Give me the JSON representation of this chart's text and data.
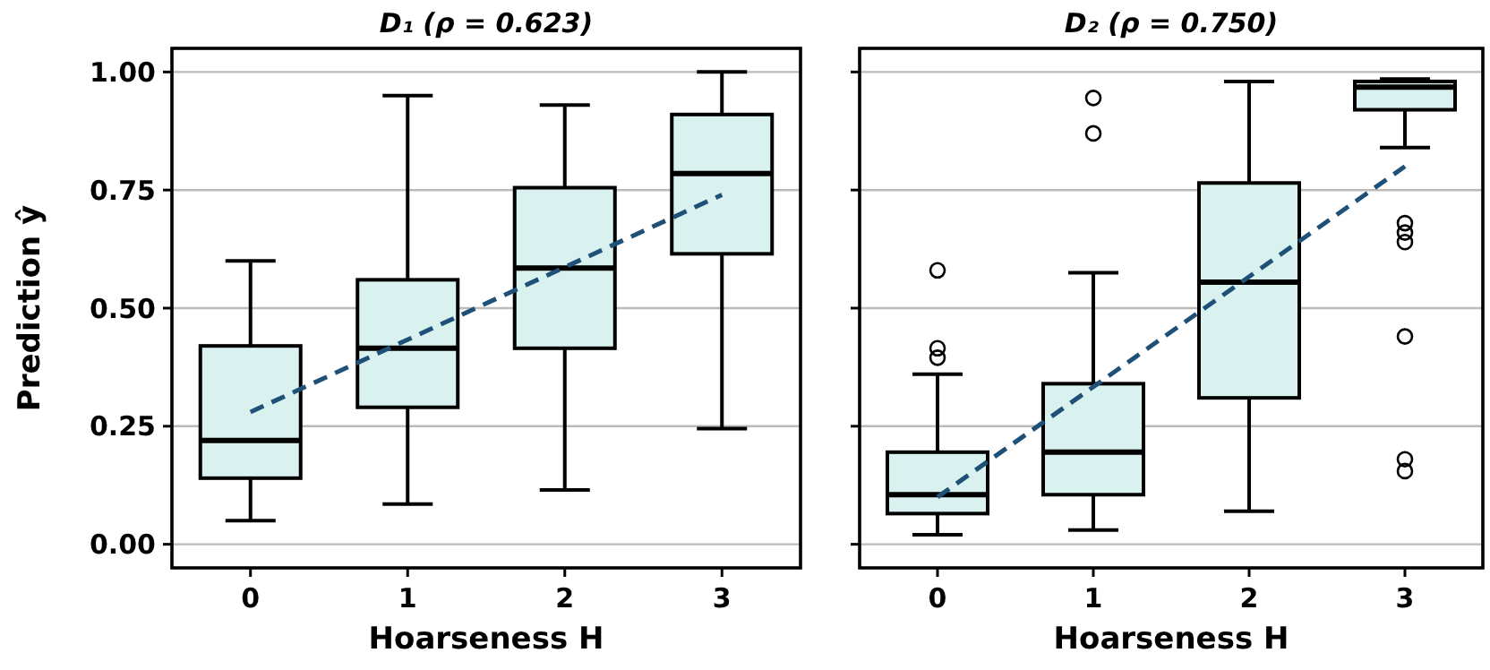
{
  "chart_data": [
    {
      "type": "box",
      "title": "D₁ (ρ = 0.623)",
      "xlabel": "Hoarseness H",
      "ylabel": "Prediction ŷ",
      "categories": [
        "0",
        "1",
        "2",
        "3"
      ],
      "ylim": [
        -0.05,
        1.05
      ],
      "yticks": [
        {
          "value": 0,
          "label": "0.00"
        },
        0.25,
        {
          "value": 0.5,
          "label": "0.50"
        },
        0.75,
        {
          "value": 1,
          "label": "1.00"
        }
      ],
      "grid": "y",
      "series": [
        {
          "color": "#d9f2ef",
          "boxes": [
            {
              "low": 0.05,
              "q1": 0.14,
              "median": 0.22,
              "q3": 0.42,
              "high": 0.6
            },
            {
              "low": 0.085,
              "q1": 0.29,
              "median": 0.415,
              "q3": 0.56,
              "high": 0.95
            },
            {
              "low": 0.115,
              "q1": 0.415,
              "median": 0.585,
              "q3": 0.755,
              "high": 0.93
            },
            {
              "low": 0.245,
              "q1": 0.615,
              "median": 0.785,
              "q3": 0.91,
              "high": 1.0
            }
          ]
        },
        {
          "type": "line",
          "color": "#1f5078",
          "line_style": "dashed",
          "x": [
            "0",
            "3"
          ],
          "values": [
            0.28,
            0.74
          ]
        }
      ]
    },
    {
      "type": "box",
      "title": "D₂ (ρ = 0.750)",
      "xlabel": "Hoarseness H",
      "categories": [
        "0",
        "1",
        "2",
        "3"
      ],
      "ylim": [
        -0.05,
        1.05
      ],
      "yticks": [
        {
          "value": 0,
          "label": null
        },
        {
          "value": 0.25,
          "label": null
        },
        {
          "value": 0.5,
          "label": null
        },
        {
          "value": 0.75,
          "label": null
        },
        {
          "value": 1,
          "label": null
        }
      ],
      "tick_labels": "x",
      "grid": "y",
      "series": [
        {
          "color": "#d9f2ef",
          "boxes": [
            {
              "low": 0.02,
              "q1": 0.065,
              "median": 0.105,
              "q3": 0.195,
              "high": 0.36,
              "outliers": [
                0.58,
                0.415,
                0.395
              ]
            },
            {
              "low": 0.03,
              "q1": 0.105,
              "median": 0.195,
              "q3": 0.34,
              "high": 0.575,
              "outliers": [
                0.945,
                0.87
              ]
            },
            {
              "low": 0.07,
              "q1": 0.31,
              "median": 0.555,
              "q3": 0.765,
              "high": 0.98
            },
            {
              "low": 0.84,
              "q1": 0.92,
              "median": 0.968,
              "q3": 0.98,
              "high": 0.985,
              "outliers": [
                0.68,
                0.66,
                0.64,
                0.44,
                0.18,
                0.155
              ]
            }
          ]
        },
        {
          "type": "line",
          "color": "#1f5078",
          "line_style": "dashed",
          "x": [
            "0",
            "3"
          ],
          "values": [
            0.1,
            0.8
          ]
        }
      ]
    }
  ]
}
